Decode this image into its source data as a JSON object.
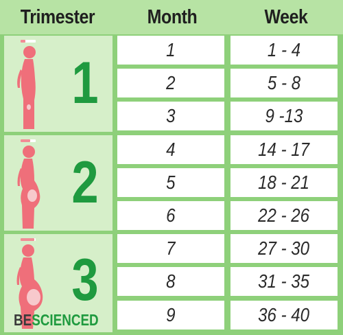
{
  "header": {
    "trimester": "Trimester",
    "month": "Month",
    "week": "Week"
  },
  "trimesters": [
    {
      "number": "1"
    },
    {
      "number": "2"
    },
    {
      "number": "3"
    }
  ],
  "rows": [
    {
      "month": "1",
      "week": "1 - 4"
    },
    {
      "month": "2",
      "week": "5 - 8"
    },
    {
      "month": "3",
      "week": "9 -13"
    },
    {
      "month": "4",
      "week": "14 - 17"
    },
    {
      "month": "5",
      "week": "18 - 21"
    },
    {
      "month": "6",
      "week": "22 - 26"
    },
    {
      "month": "7",
      "week": "27 - 30"
    },
    {
      "month": "8",
      "week": "31 - 35"
    },
    {
      "month": "9",
      "week": "36 - 40"
    }
  ],
  "watermark": {
    "part1": "BE",
    "part2": "SCIENCED"
  },
  "colors": {
    "header_bg": "#b7e3a4",
    "grid_bg": "#8ed07a",
    "trimester_cell_bg": "#d6efc9",
    "trimester_number": "#1f9a3f",
    "silhouette": "#ef6f7a",
    "fetus": "#f7c9cc",
    "progress_bar": "#f28c95"
  },
  "icons": [
    "pregnant-woman-silhouette-icon",
    "fetus-icon",
    "progress-bar-icon"
  ]
}
